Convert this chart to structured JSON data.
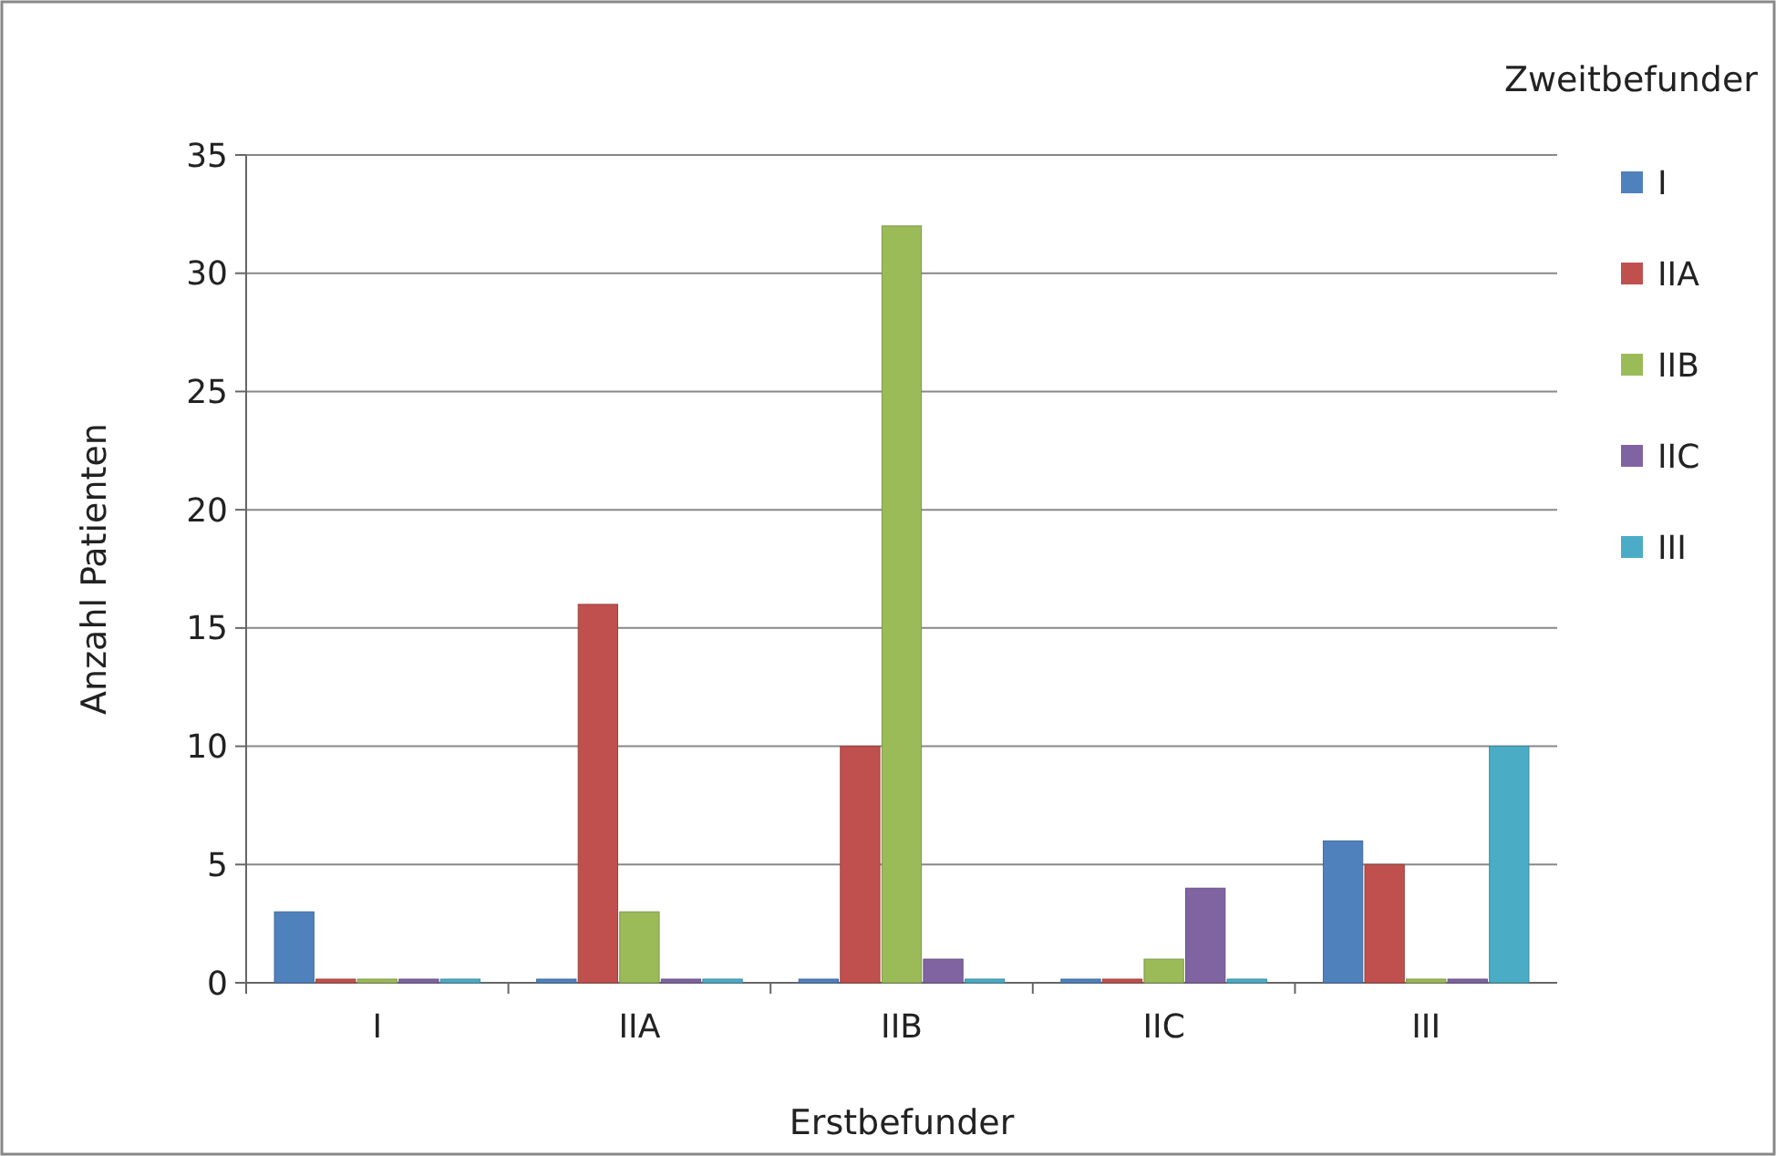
{
  "chart_data": {
    "type": "bar",
    "xlabel": "Erstbefunder",
    "ylabel": "Anzahl Patienten",
    "legend_title": "Zweitbefunder",
    "categories": [
      "I",
      "IIA",
      "IIB",
      "IIC",
      "III"
    ],
    "series": [
      {
        "name": "I",
        "color": "#4f81bd",
        "values": [
          3,
          0,
          0,
          0,
          6
        ]
      },
      {
        "name": "IIA",
        "color": "#c0504d",
        "values": [
          0,
          16,
          10,
          0,
          5
        ]
      },
      {
        "name": "IIB",
        "color": "#9bbb59",
        "values": [
          0,
          3,
          32,
          1,
          0
        ]
      },
      {
        "name": "IIC",
        "color": "#8064a2",
        "values": [
          0,
          0,
          1,
          4,
          0
        ]
      },
      {
        "name": "III",
        "color": "#4bacc6",
        "values": [
          0,
          0,
          0,
          0,
          10
        ]
      }
    ],
    "ylim": [
      0,
      35
    ],
    "yticks": [
      0,
      5,
      10,
      15,
      20,
      25,
      30,
      35
    ],
    "grid": "y",
    "legend": "right"
  }
}
